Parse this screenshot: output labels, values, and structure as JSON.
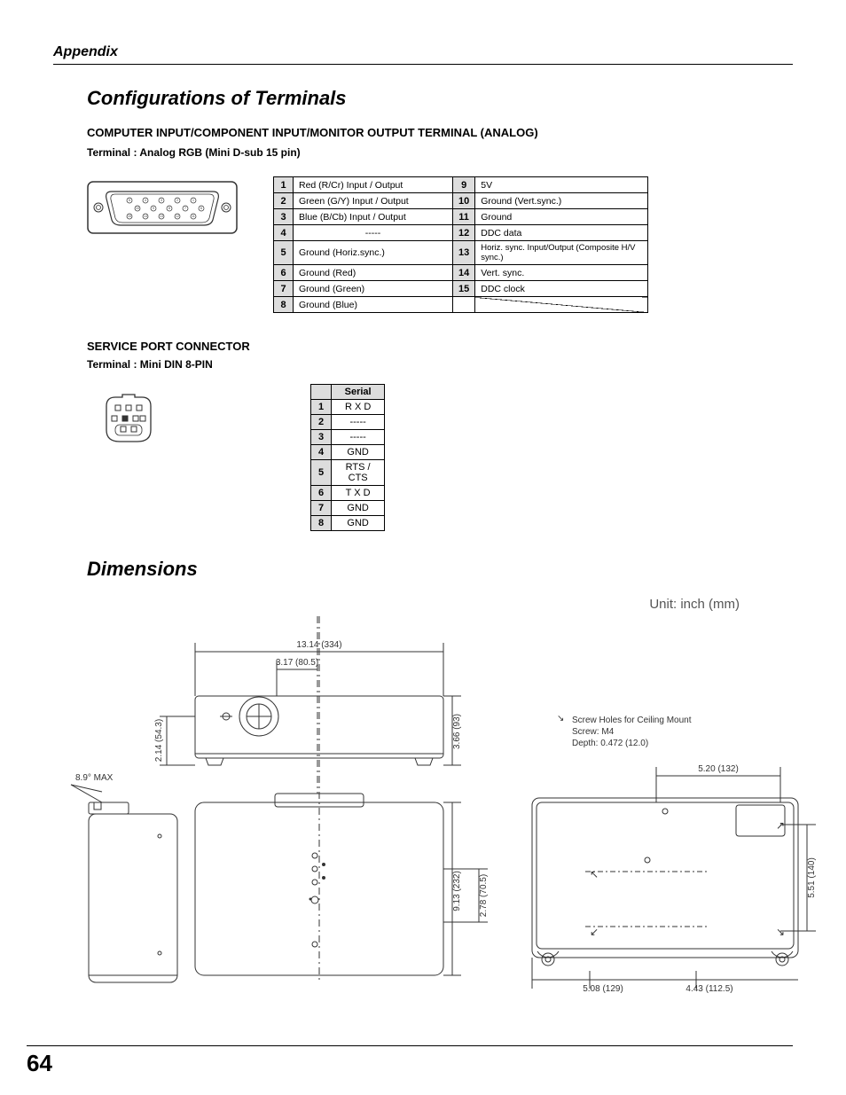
{
  "header": "Appendix",
  "title1": "Configurations of Terminals",
  "computer_input": {
    "heading": "COMPUTER INPUT/COMPONENT INPUT/MONITOR OUTPUT TERMINAL (ANALOG)",
    "subheading": "Terminal : Analog RGB (Mini D-sub 15 pin)",
    "pins_left": [
      {
        "n": "1",
        "d": "Red (R/Cr) Input / Output"
      },
      {
        "n": "2",
        "d": "Green (G/Y) Input / Output"
      },
      {
        "n": "3",
        "d": "Blue (B/Cb) Input / Output"
      },
      {
        "n": "4",
        "d": "-----"
      },
      {
        "n": "5",
        "d": "Ground (Horiz.sync.)"
      },
      {
        "n": "6",
        "d": "Ground (Red)"
      },
      {
        "n": "7",
        "d": "Ground (Green)"
      },
      {
        "n": "8",
        "d": "Ground (Blue)"
      }
    ],
    "pins_right": [
      {
        "n": "9",
        "d": "5V"
      },
      {
        "n": "10",
        "d": "Ground (Vert.sync.)"
      },
      {
        "n": "11",
        "d": "Ground"
      },
      {
        "n": "12",
        "d": "DDC data"
      },
      {
        "n": "13",
        "d": "Horiz. sync. Input/Output (Composite H/V sync.)"
      },
      {
        "n": "14",
        "d": "Vert. sync."
      },
      {
        "n": "15",
        "d": "DDC clock"
      },
      {
        "n": "",
        "d": "",
        "diag": true
      }
    ]
  },
  "service_port": {
    "heading": "SERVICE PORT CONNECTOR",
    "subheading": "Terminal : Mini DIN 8-PIN",
    "table_header": "Serial",
    "pins": [
      {
        "n": "1",
        "v": "R X D"
      },
      {
        "n": "2",
        "v": "-----"
      },
      {
        "n": "3",
        "v": "-----"
      },
      {
        "n": "4",
        "v": "GND"
      },
      {
        "n": "5",
        "v": "RTS / CTS"
      },
      {
        "n": "6",
        "v": "T X D"
      },
      {
        "n": "7",
        "v": "GND"
      },
      {
        "n": "8",
        "v": "GND"
      }
    ]
  },
  "title2": "Dimensions",
  "dimensions": {
    "unit": "Unit: inch (mm)",
    "labels": {
      "top_width": "13.14 (334)",
      "lens_offset": "3.17 (80.5)",
      "front_height": "3.66 (93)",
      "side_height": "2.14 (54.3)",
      "tilt": "8.9° MAX",
      "top_depth": "9.13 (232)",
      "top_inner_depth": "2.78 (70.5)",
      "mount_w": "5.20 (132)",
      "mount_h": "5.51 (140)",
      "bottom_left": "5.08 (129)",
      "bottom_right": "4.43 (112.5)",
      "screw_note_1": "Screw Holes for Ceiling Mount",
      "screw_note_2": "Screw: M4",
      "screw_note_3": "Depth: 0.472 (12.0)"
    }
  },
  "page_number": "64"
}
